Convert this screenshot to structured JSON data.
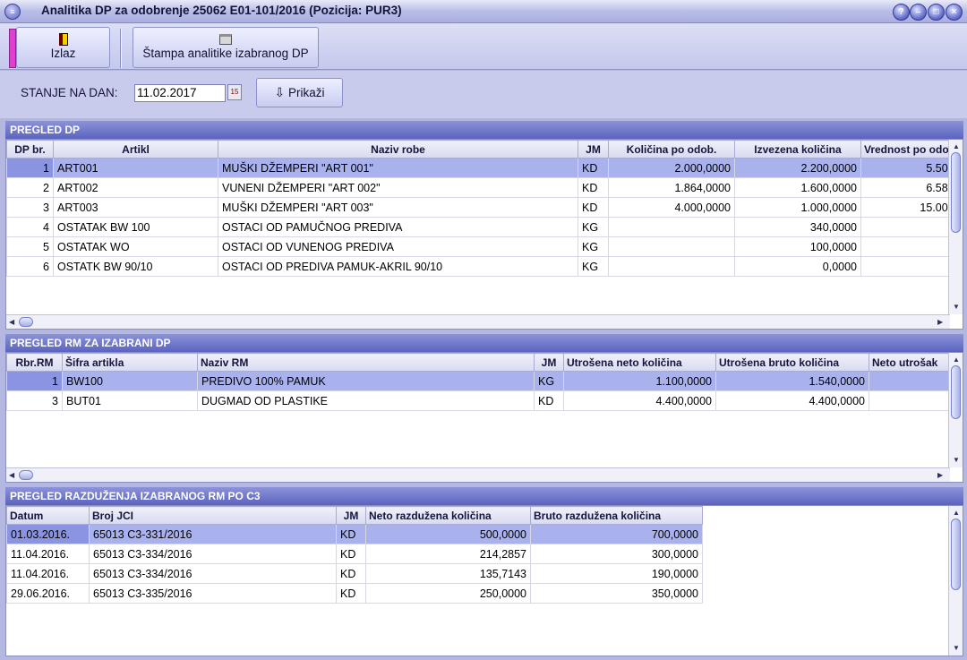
{
  "window": {
    "title": "Analitika DP za odobrenje 25062 E01-101/2016 (Pozicija: PUR3)",
    "sys_icon_glyph": "≡",
    "buttons": {
      "help": "?",
      "minimize": "–",
      "maximize": "□",
      "close": "×"
    }
  },
  "toolbar": {
    "exit_label": "Izlaz",
    "print_label": "Štampa analitike izabranog DP"
  },
  "filter": {
    "date_label": "STANJE NA DAN:",
    "date_value": "11.02.2017",
    "show_label": "Prikaži"
  },
  "dp": {
    "title": "PREGLED DP",
    "columns": [
      "DP br.",
      "Artikl",
      "Naziv robe",
      "JM",
      "Količina po odob.",
      "Izvezena količina",
      "Vrednost po odo"
    ],
    "rows": [
      [
        "1",
        "ART001",
        "MUŠKI DŽEMPERI \"ART 001\"",
        "KD",
        "2.000,0000",
        "2.200,0000",
        "5.50"
      ],
      [
        "2",
        "ART002",
        "VUNENI DŽEMPERI \"ART 002\"",
        "KD",
        "1.864,0000",
        "1.600,0000",
        "6.58"
      ],
      [
        "3",
        "ART003",
        "MUŠKI DŽEMPERI \"ART 003\"",
        "KD",
        "4.000,0000",
        "1.000,0000",
        "15.00"
      ],
      [
        "4",
        "OSTATAK BW 100",
        "OSTACI OD PAMUČNOG PREDIVA",
        "KG",
        "",
        "340,0000",
        ""
      ],
      [
        "5",
        "OSTATAK WO",
        "OSTACI OD VUNENOG PREDIVA",
        "KG",
        "",
        "100,0000",
        ""
      ],
      [
        "6",
        "OSTATK BW 90/10",
        "OSTACI OD PREDIVA PAMUK-AKRIL 90/10",
        "KG",
        "",
        "0,0000",
        ""
      ]
    ]
  },
  "rm": {
    "title": "PREGLED RM ZA IZABRANI DP",
    "columns": [
      "Rbr.RM",
      "Šifra artikla",
      "Naziv RM",
      "JM",
      "Utrošena neto količina",
      "Utrošena bruto količina",
      "Neto utrošak"
    ],
    "rows": [
      [
        "1",
        "BW100",
        "PREDIVO 100% PAMUK",
        "KG",
        "1.100,0000",
        "1.540,0000",
        ""
      ],
      [
        "3",
        "BUT01",
        "DUGMAD OD PLASTIKE",
        "KD",
        "4.400,0000",
        "4.400,0000",
        ""
      ]
    ]
  },
  "c3": {
    "title": "PREGLED RAZDUŽENJA IZABRANOG RM PO C3",
    "columns": [
      "Datum",
      "Broj JCI",
      "JM",
      "Neto razdužena količina",
      "Bruto razdužena količina"
    ],
    "rows": [
      [
        "01.03.2016.",
        "65013 C3-331/2016",
        "KD",
        "500,0000",
        "700,0000"
      ],
      [
        "11.04.2016.",
        "65013 C3-334/2016",
        "KD",
        "214,2857",
        "300,0000"
      ],
      [
        "11.04.2016.",
        "65013 C3-334/2016",
        "KD",
        "135,7143",
        "190,0000"
      ],
      [
        "29.06.2016.",
        "65013 C3-335/2016",
        "KD",
        "250,0000",
        "350,0000"
      ]
    ]
  },
  "colors": {
    "selected_row": "#aab2ee",
    "section_header": "#5b63c0",
    "window_bg": "#c8cbec"
  },
  "icons": {
    "exit": "door-exit-icon",
    "print": "printer-icon",
    "show": "arrow-down-icon",
    "calendar": "calendar-icon"
  }
}
